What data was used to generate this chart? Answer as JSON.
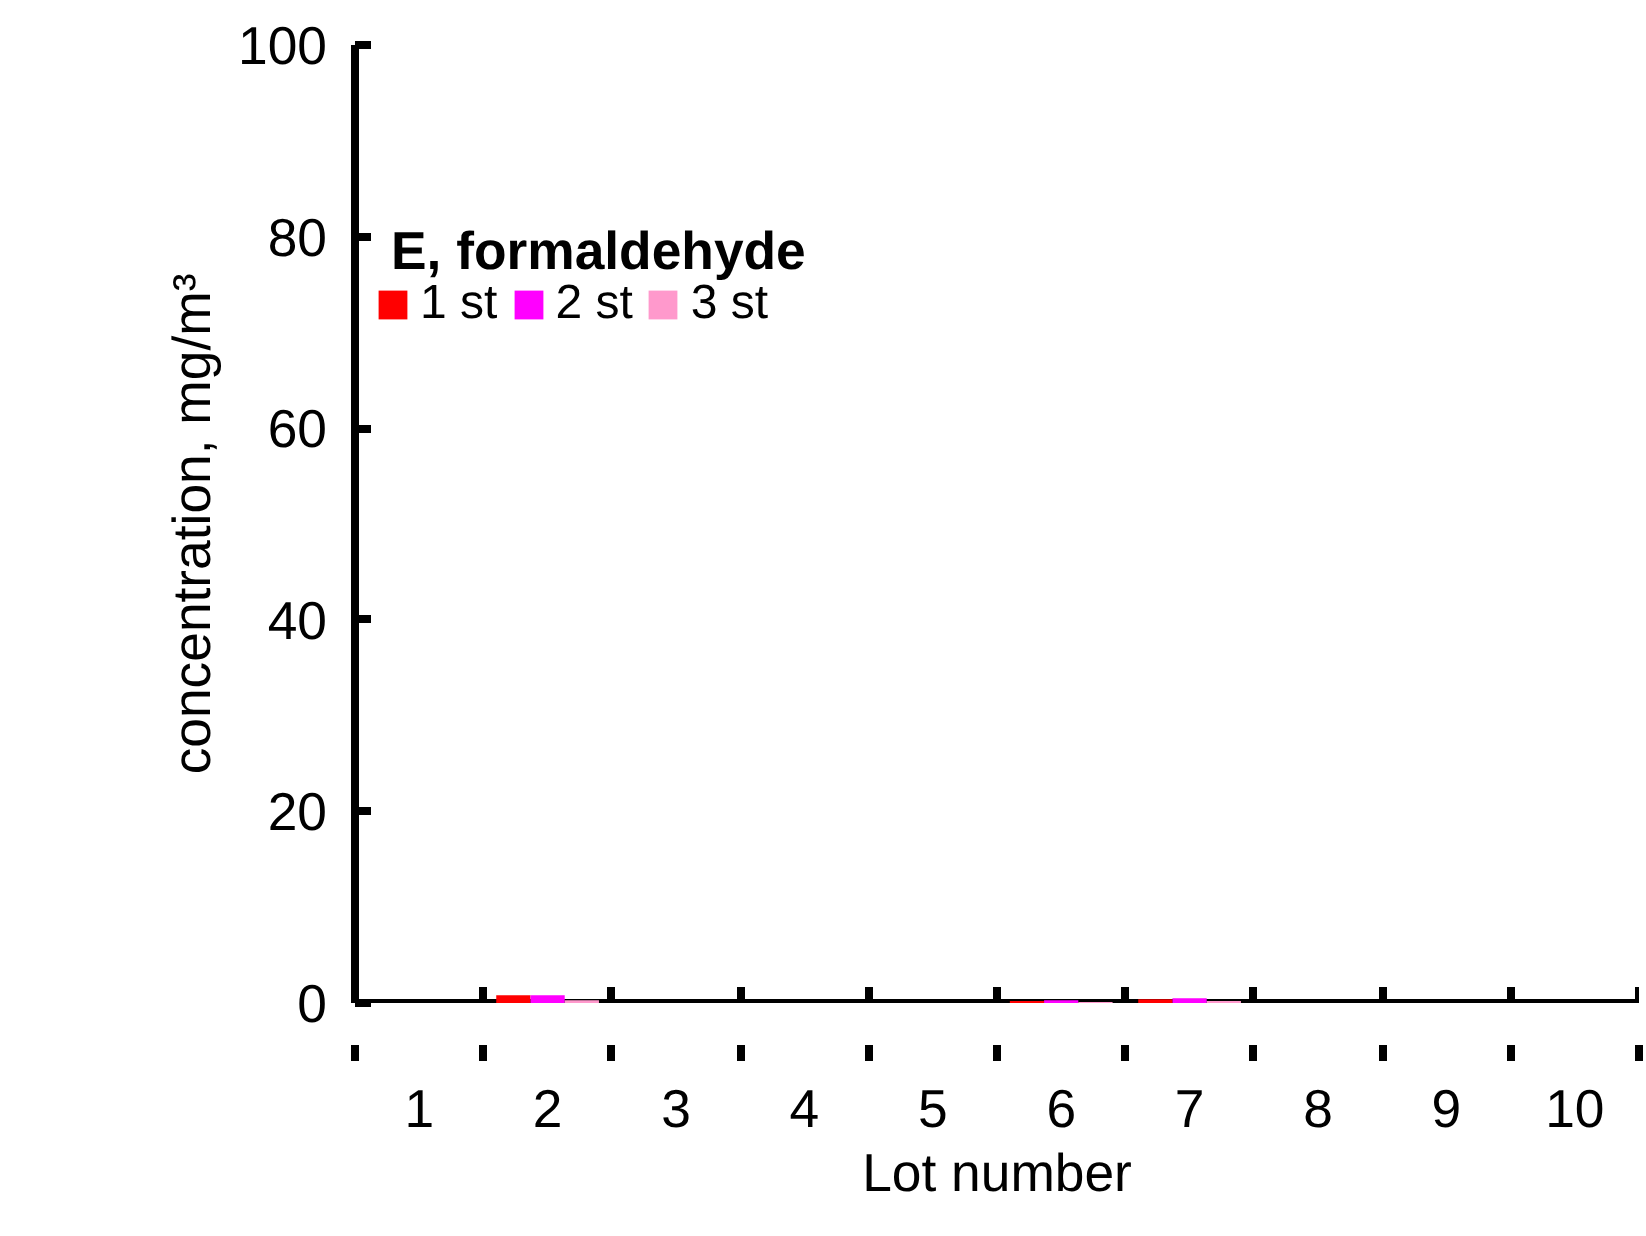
{
  "chart_data": {
    "type": "bar",
    "title": "E, formaldehyde",
    "xlabel": "Lot number",
    "ylabel": "concentration, mg/m³",
    "categories": [
      "1",
      "2",
      "3",
      "4",
      "5",
      "6",
      "7",
      "8",
      "9",
      "10"
    ],
    "series": [
      {
        "name": "1 st",
        "color": "#ff0000",
        "values": [
          0,
          0.8,
          0,
          0,
          0,
          0.2,
          0.4,
          0,
          0,
          0
        ]
      },
      {
        "name": "2 st",
        "color": "#ff00ff",
        "values": [
          0,
          0.8,
          0,
          0,
          0,
          0.3,
          0.5,
          0,
          0,
          0
        ]
      },
      {
        "name": "3 st",
        "color": "#ff99cc",
        "values": [
          0,
          0.3,
          0,
          0,
          0,
          0.1,
          0.2,
          0,
          0,
          0
        ]
      }
    ],
    "ylim": [
      0,
      100
    ],
    "yticks": [
      0,
      20,
      40,
      60,
      80,
      100
    ],
    "grid": false,
    "legend": "top left"
  }
}
